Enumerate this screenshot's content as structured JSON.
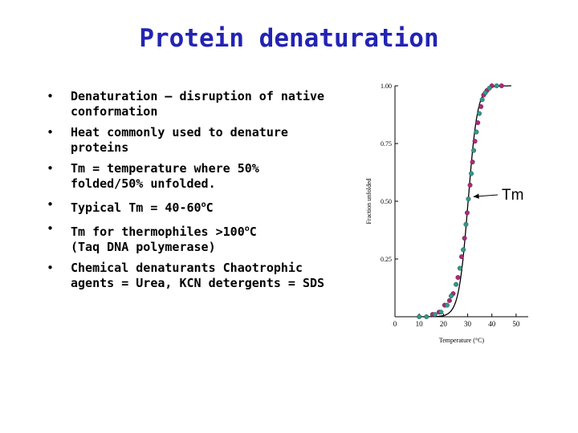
{
  "slide": {
    "title": "Protein denaturation",
    "bullets": [
      {
        "bullet": "•",
        "lines": [
          "Denaturation – disruption of native",
          "conformation"
        ]
      },
      {
        "bullet": "•",
        "lines": [
          "Heat commonly used to denature",
          "proteins"
        ]
      },
      {
        "bullet": "•",
        "lines": [
          "Tm = temperature where 50%",
          "folded/50% unfolded."
        ]
      },
      {
        "bullet": "•",
        "pre": "Typical Tm = 40-60",
        "sup": "o",
        "post": "C"
      },
      {
        "bullet": "•",
        "pre": "Tm for thermophiles >100",
        "sup": "o",
        "post": "C",
        "line2": "(Taq DNA polymerase)"
      },
      {
        "bullet": "•",
        "lines": [
          "Chemical denaturants Chaotrophic",
          "agents = Urea, KCN detergents = SDS"
        ]
      }
    ]
  },
  "annotation": {
    "text": "Tm"
  },
  "chart_data": {
    "type": "scatter",
    "xlabel": "Temperature (°C)",
    "ylabel": "Fraction unfolded",
    "xlim": [
      0,
      55
    ],
    "ylim": [
      0,
      1.0
    ],
    "xticks": [
      "10",
      "20",
      "30",
      "40",
      "50"
    ],
    "xtick_values": [
      10,
      20,
      30,
      40,
      50
    ],
    "xtick_zero_label": "0",
    "yticks": [
      "0.25",
      "0.50",
      "0.75",
      "1.00"
    ],
    "ytick_values": [
      0.25,
      0.5,
      0.75,
      1.0
    ],
    "fit_curve": {
      "midpoint": 30.2,
      "slope": 0.52
    },
    "series": [
      {
        "color": "#b0267a",
        "points": [
          [
            15.5,
            0.01
          ],
          [
            18.2,
            0.02
          ],
          [
            20.5,
            0.05
          ],
          [
            22.5,
            0.07
          ],
          [
            24.0,
            0.1
          ],
          [
            26.0,
            0.17
          ],
          [
            27.5,
            0.26
          ],
          [
            28.7,
            0.34
          ],
          [
            29.8,
            0.45
          ],
          [
            31.0,
            0.57
          ],
          [
            32.0,
            0.67
          ],
          [
            33.0,
            0.76
          ],
          [
            34.2,
            0.84
          ],
          [
            35.5,
            0.91
          ],
          [
            36.6,
            0.96
          ],
          [
            38.0,
            0.98
          ],
          [
            40.0,
            1.0
          ],
          [
            44.0,
            1.0
          ]
        ]
      },
      {
        "color": "#2e9a8a",
        "points": [
          [
            10.0,
            0.0
          ],
          [
            13.0,
            0.0
          ],
          [
            16.5,
            0.01
          ],
          [
            19.0,
            0.02
          ],
          [
            21.5,
            0.05
          ],
          [
            23.2,
            0.09
          ],
          [
            25.2,
            0.14
          ],
          [
            26.8,
            0.21
          ],
          [
            28.2,
            0.29
          ],
          [
            29.3,
            0.4
          ],
          [
            30.3,
            0.51
          ],
          [
            31.5,
            0.62
          ],
          [
            32.5,
            0.72
          ],
          [
            33.6,
            0.8
          ],
          [
            34.8,
            0.88
          ],
          [
            36.0,
            0.94
          ],
          [
            37.3,
            0.97
          ],
          [
            39.0,
            0.99
          ],
          [
            42.0,
            1.0
          ]
        ]
      }
    ],
    "annotation_point": {
      "x": 31.0,
      "y": 0.52
    }
  }
}
